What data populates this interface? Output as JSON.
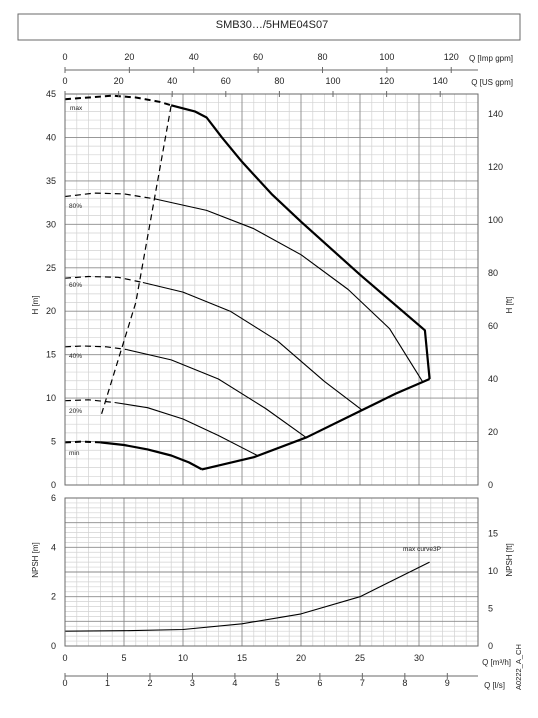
{
  "title": "SMB30…/5HME04S07",
  "side_code": "A0222_A_CH",
  "colors": {
    "frame": "#6a6a6a",
    "grid_major": "#8a8a8a",
    "grid_minor": "#d2d2d2",
    "curve": "#000000"
  },
  "top_axes": {
    "imp_label": "Q [Imp gpm]",
    "imp_ticks": [
      "0",
      "20",
      "40",
      "60",
      "80",
      "100",
      "120"
    ],
    "us_label": "Q [US gpm]",
    "us_ticks": [
      "0",
      "20",
      "40",
      "60",
      "80",
      "100",
      "120",
      "140"
    ]
  },
  "bottom_axes": {
    "m3h_label": "Q [m³/h]",
    "m3h_ticks": [
      "0",
      "5",
      "10",
      "15",
      "20",
      "25",
      "30"
    ],
    "ls_label": "Q [l/s]",
    "ls_ticks": [
      "0",
      "1",
      "2",
      "3",
      "4",
      "5",
      "6",
      "7",
      "8",
      "9"
    ]
  },
  "chart_data": [
    {
      "type": "line",
      "title": "SMB30…/5HME04S07",
      "xlabel": "Q [m³/h]",
      "ylabel": "H [m]",
      "ylabel_right": "H [ft]",
      "xlim": [
        0,
        35
      ],
      "ylim": [
        0,
        45
      ],
      "ylim_right": [
        0,
        147.6
      ],
      "x_ticks": [
        "0",
        "5",
        "10",
        "15",
        "20",
        "25",
        "30"
      ],
      "y_ticks": [
        "0",
        "5",
        "10",
        "15",
        "20",
        "25",
        "30",
        "35",
        "40",
        "45"
      ],
      "y_ticks_right": [
        "0",
        "20",
        "40",
        "60",
        "80",
        "100",
        "120",
        "140"
      ],
      "grid": true,
      "series": [
        {
          "name": "max",
          "style": "solid",
          "points": [
            [
              9,
              43.7
            ],
            [
              11,
              43.0
            ],
            [
              12,
              42.3
            ],
            [
              13.3,
              40.0
            ],
            [
              15,
              37.2
            ],
            [
              17.5,
              33.5
            ],
            [
              20,
              30.3
            ],
            [
              25,
              24.2
            ],
            [
              30.5,
              17.8
            ],
            [
              30.9,
              12.2
            ]
          ]
        },
        {
          "name": "max",
          "style": "dashed",
          "points": [
            [
              0,
              44.4
            ],
            [
              2,
              44.6
            ],
            [
              4,
              44.8
            ],
            [
              6,
              44.6
            ],
            [
              8,
              44.1
            ],
            [
              9,
              43.7
            ]
          ]
        },
        {
          "name": "80%",
          "style": "solid",
          "points": [
            [
              7.7,
              32.9
            ],
            [
              12,
              31.6
            ],
            [
              16,
              29.5
            ],
            [
              20,
              26.5
            ],
            [
              24,
              22.5
            ],
            [
              27.5,
              18.0
            ],
            [
              30.3,
              11.9
            ]
          ]
        },
        {
          "name": "80%",
          "style": "dashed",
          "points": [
            [
              0,
              33.2
            ],
            [
              2.5,
              33.6
            ],
            [
              5,
              33.5
            ],
            [
              7.7,
              32.9
            ]
          ]
        },
        {
          "name": "60%",
          "style": "solid",
          "points": [
            [
              6.6,
              23.3
            ],
            [
              10,
              22.2
            ],
            [
              14,
              20.0
            ],
            [
              18,
              16.6
            ],
            [
              22,
              11.9
            ],
            [
              25.2,
              8.6
            ]
          ]
        },
        {
          "name": "60%",
          "style": "dashed",
          "points": [
            [
              0,
              23.8
            ],
            [
              2,
              24.0
            ],
            [
              4.5,
              23.9
            ],
            [
              6.6,
              23.3
            ]
          ]
        },
        {
          "name": "40%",
          "style": "solid",
          "points": [
            [
              5.2,
              15.6
            ],
            [
              9,
              14.4
            ],
            [
              13,
              12.2
            ],
            [
              17,
              8.8
            ],
            [
              20.4,
              5.5
            ]
          ]
        },
        {
          "name": "40%",
          "style": "dashed",
          "points": [
            [
              0,
              15.9
            ],
            [
              1.5,
              16.0
            ],
            [
              3.5,
              15.9
            ],
            [
              5.2,
              15.6
            ]
          ]
        },
        {
          "name": "20%",
          "style": "solid",
          "points": [
            [
              4.2,
              9.5
            ],
            [
              7,
              8.9
            ],
            [
              10,
              7.6
            ],
            [
              13,
              5.7
            ],
            [
              16.3,
              3.4
            ]
          ]
        },
        {
          "name": "20%",
          "style": "dashed",
          "points": [
            [
              0,
              9.7
            ],
            [
              2,
              9.8
            ],
            [
              4.2,
              9.5
            ]
          ]
        },
        {
          "name": "min",
          "style": "solid",
          "points": [
            [
              3,
              4.9
            ],
            [
              5,
              4.6
            ],
            [
              7,
              4.1
            ],
            [
              9,
              3.4
            ],
            [
              10.5,
              2.6
            ],
            [
              11.6,
              1.8
            ]
          ]
        },
        {
          "name": "min",
          "style": "dashed",
          "points": [
            [
              0,
              4.9
            ],
            [
              1.5,
              5.0
            ],
            [
              3,
              4.9
            ]
          ]
        },
        {
          "name": "",
          "style": "dashed",
          "points": [
            [
              3.1,
              8.2
            ],
            [
              6,
              21.0
            ],
            [
              9,
              43.7
            ]
          ]
        },
        {
          "name": "",
          "style": "solid",
          "points": [
            [
              11.6,
              1.8
            ],
            [
              16,
              3.2
            ],
            [
              20.5,
              5.5
            ],
            [
              25,
              8.5
            ],
            [
              28,
              10.5
            ],
            [
              30.9,
              12.2
            ]
          ]
        }
      ]
    },
    {
      "type": "line",
      "xlabel": "Q [m³/h]",
      "ylabel": "NPSH [m]",
      "ylabel_right": "NPSH [ft]",
      "xlim": [
        0,
        35
      ],
      "ylim": [
        0,
        6
      ],
      "ylim_right": [
        0,
        19.7
      ],
      "x_ticks": [
        "0",
        "5",
        "10",
        "15",
        "20",
        "25",
        "30"
      ],
      "y_ticks": [
        "0",
        "2",
        "4",
        "6"
      ],
      "y_ticks_right": [
        "0",
        "5",
        "10",
        "15"
      ],
      "grid": true,
      "series": [
        {
          "name": "max curve3P",
          "style": "solid",
          "points": [
            [
              0,
              0.6
            ],
            [
              5,
              0.62
            ],
            [
              10,
              0.67
            ],
            [
              15,
              0.9
            ],
            [
              20,
              1.3
            ],
            [
              25,
              2.0
            ],
            [
              30.9,
              3.4
            ]
          ]
        }
      ]
    }
  ]
}
